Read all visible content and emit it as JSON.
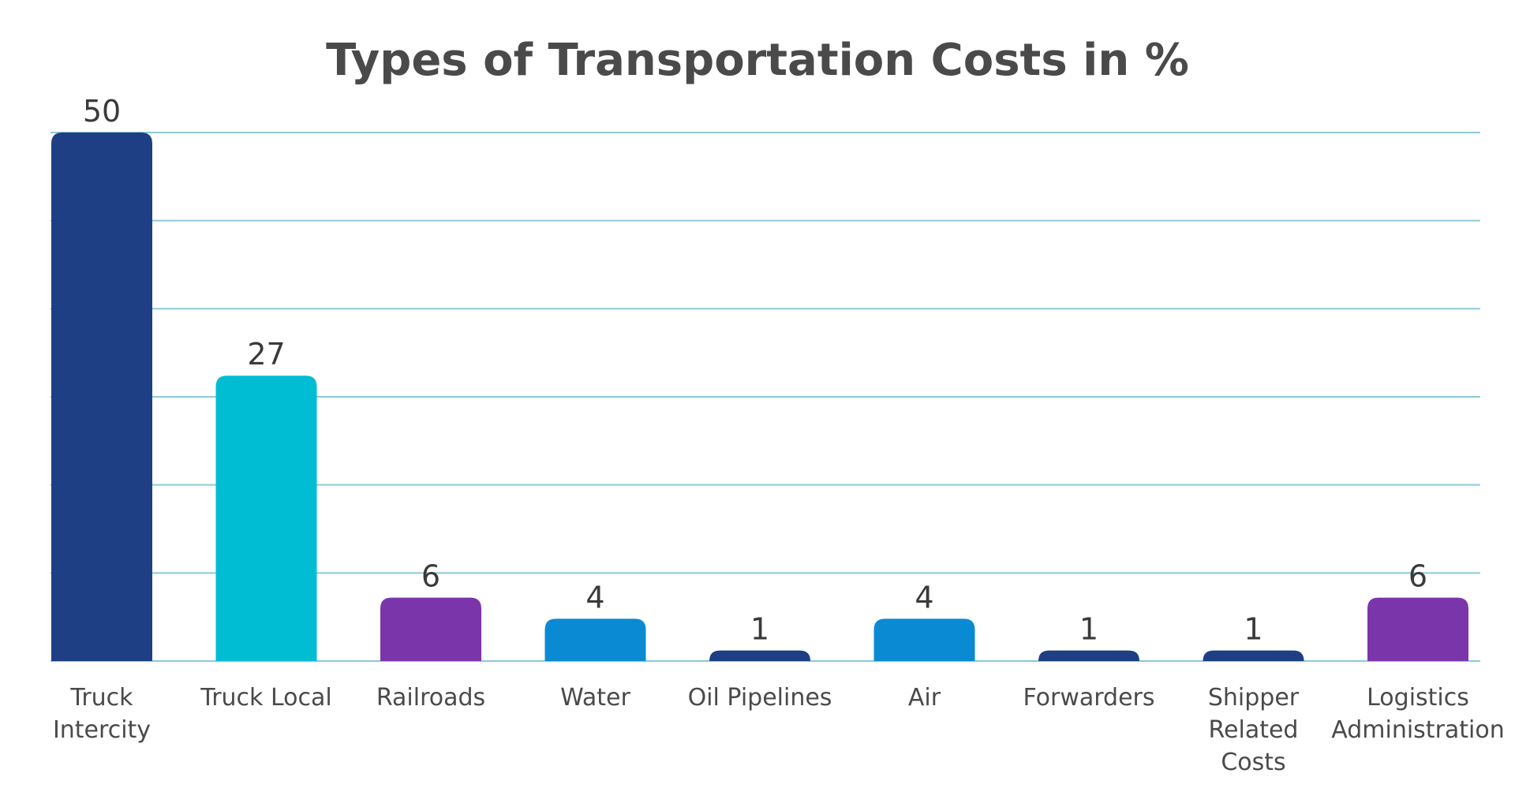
{
  "chart_data": {
    "type": "bar",
    "title": "Types of Transportation Costs in %",
    "xlabel": "",
    "ylabel": "",
    "ylim": [
      0,
      50
    ],
    "grid": true,
    "categories": [
      [
        "Truck",
        "Intercity"
      ],
      [
        "Truck Local"
      ],
      [
        "Railroads"
      ],
      [
        "Water"
      ],
      [
        "Oil Pipelines"
      ],
      [
        "Air"
      ],
      [
        "Forwarders"
      ],
      [
        "Shipper",
        "Related",
        "Costs"
      ],
      [
        "Logistics",
        "Administration"
      ]
    ],
    "values": [
      50,
      27,
      6,
      4,
      1,
      4,
      1,
      1,
      6
    ],
    "colors": [
      "#1e3f84",
      "#00bdd3",
      "#7b35ab",
      "#0b8ad4",
      "#1e3f84",
      "#0b8ad4",
      "#1e3f84",
      "#1e3f84",
      "#7b35ab"
    ],
    "gridline_color": "#8cc9d9"
  }
}
